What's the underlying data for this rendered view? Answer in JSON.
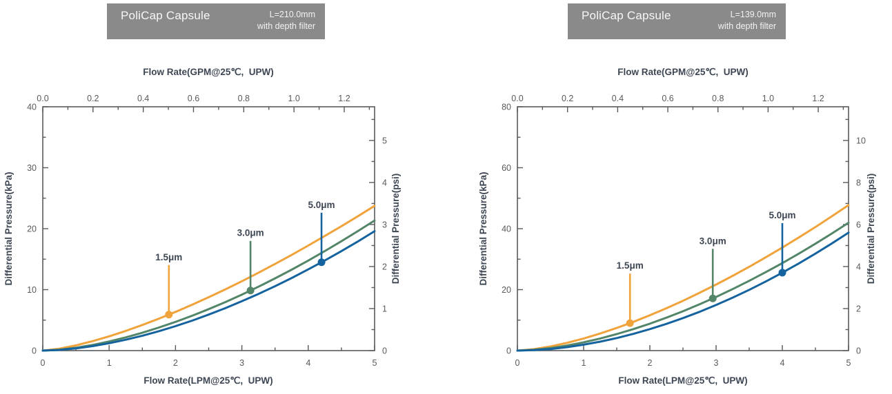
{
  "colors": {
    "header_bg": "#8A8A8A",
    "header_text": "#F2F2F2",
    "axis_line": "#58595B",
    "tick_text": "#58595B",
    "title_text": "#3D4653",
    "series_orange": "#F1A33B",
    "series_green": "#538569",
    "series_blue": "#14639E"
  },
  "chart_data": [
    {
      "type": "line",
      "header": {
        "title": "PoliCap Capsule",
        "length": "L=210.0mm",
        "subtitle": "with depth filter"
      },
      "axes": {
        "top": {
          "label": "Flow Rate(GPM@25℃,  UPW)",
          "values": [
            0,
            0.2,
            0.4,
            0.6,
            0.8,
            1.0,
            1.2
          ],
          "labels": [
            "0.0",
            "0.2",
            "0.4",
            "0.6",
            "0.8",
            "1.0",
            "1.2"
          ],
          "minors": [
            0.1,
            0.3,
            0.5,
            0.7,
            0.9,
            1.1,
            1.3
          ],
          "lpm_per_gpm": 3.78541
        },
        "bottom": {
          "label": "Flow Rate(LPM@25℃,  UPW)",
          "values": [
            0,
            1,
            2,
            3,
            4,
            5
          ],
          "labels": [
            "0",
            "1",
            "2",
            "3",
            "4",
            "5"
          ],
          "minors": [
            0.5,
            1.5,
            2.5,
            3.5,
            4.5
          ],
          "max": 5
        },
        "left": {
          "label": "Differential Pressure(kPa)",
          "values": [
            0,
            10,
            20,
            30,
            40
          ],
          "labels": [
            "0",
            "10",
            "20",
            "30",
            "40"
          ],
          "minors": [
            5,
            15,
            25,
            35
          ],
          "max": 40
        },
        "right": {
          "label": "Differential Pressure(psi)",
          "values": [
            0,
            1,
            2,
            3,
            4,
            5
          ],
          "labels": [
            "0",
            "1",
            "2",
            "3",
            "4",
            "5"
          ],
          "minors": [
            0.5,
            1.5,
            2.5,
            3.5,
            4.5,
            5.5
          ],
          "kpa_per_psi": 6.89476
        }
      },
      "x": [
        0,
        0.25,
        0.5,
        0.75,
        1,
        1.25,
        1.5,
        1.75,
        2,
        2.25,
        2.5,
        2.75,
        3,
        3.25,
        3.5,
        3.75,
        4,
        4.25,
        4.5,
        4.75,
        5
      ],
      "series": [
        {
          "name": "1.5μm",
          "color": "#F1A33B",
          "y": [
            0,
            0.32,
            0.86,
            1.55,
            2.34,
            3.23,
            4.2,
            5.24,
            6.35,
            7.52,
            8.76,
            10.04,
            11.38,
            12.78,
            14.21,
            15.7,
            17.23,
            18.8,
            20.41,
            22.06,
            23.75
          ],
          "marker": {
            "x": 1.9,
            "y": 5.9
          }
        },
        {
          "name": "3.0μm",
          "color": "#538569",
          "y": [
            0,
            0.15,
            0.48,
            0.93,
            1.5,
            2.17,
            2.93,
            3.78,
            4.71,
            5.72,
            6.8,
            7.96,
            9.19,
            10.49,
            11.85,
            13.28,
            14.77,
            16.33,
            17.94,
            19.62,
            21.35
          ],
          "marker": {
            "x": 3.13,
            "y": 9.86
          }
        },
        {
          "name": "5.0μm",
          "color": "#14639E",
          "y": [
            0,
            0.11,
            0.36,
            0.74,
            1.21,
            1.78,
            2.44,
            3.19,
            4.01,
            4.92,
            5.91,
            6.96,
            8.1,
            9.3,
            10.57,
            11.91,
            13.32,
            14.78,
            16.32,
            17.92,
            19.59
          ],
          "marker": {
            "x": 4.2,
            "y": 14.49
          }
        }
      ]
    },
    {
      "type": "line",
      "header": {
        "title": "PoliCap Capsule",
        "length": "L=139.0mm",
        "subtitle": "with depth filter"
      },
      "axes": {
        "top": {
          "label": "Flow Rate(GPM@25℃,  UPW)",
          "values": [
            0,
            0.2,
            0.4,
            0.6,
            0.8,
            1.0,
            1.2
          ],
          "labels": [
            "0.0",
            "0.2",
            "0.4",
            "0.6",
            "0.8",
            "1.0",
            "1.2"
          ],
          "minors": [
            0.1,
            0.3,
            0.5,
            0.7,
            0.9,
            1.1,
            1.3
          ],
          "lpm_per_gpm": 3.78541
        },
        "bottom": {
          "label": "Flow Rate(LPM@25℃,  UPW)",
          "values": [
            0,
            1,
            2,
            3,
            4,
            5
          ],
          "labels": [
            "0",
            "1",
            "2",
            "3",
            "4",
            "5"
          ],
          "minors": [
            0.5,
            1.5,
            2.5,
            3.5,
            4.5
          ],
          "max": 5
        },
        "left": {
          "label": "Differential Pressure(kPa)",
          "values": [
            0,
            20,
            40,
            60,
            80
          ],
          "labels": [
            "0",
            "20",
            "40",
            "60",
            "80"
          ],
          "minors": [
            10,
            30,
            50,
            70
          ],
          "max": 80
        },
        "right": {
          "label": "Differential Pressure(psi)",
          "values": [
            0,
            2,
            4,
            6,
            8,
            10
          ],
          "labels": [
            "0",
            "2",
            "4",
            "6",
            "8",
            "10"
          ],
          "minors": [
            1,
            3,
            5,
            7,
            9,
            11
          ],
          "kpa_per_psi": 6.89476
        }
      },
      "x": [
        0,
        0.25,
        0.5,
        0.75,
        1,
        1.25,
        1.5,
        1.75,
        2,
        2.25,
        2.5,
        2.75,
        3,
        3.25,
        3.5,
        3.75,
        4,
        4.25,
        4.5,
        4.75,
        5
      ],
      "series": [
        {
          "name": "1.5μm",
          "color": "#F1A33B",
          "y": [
            0,
            0.47,
            1.36,
            2.55,
            3.97,
            5.6,
            7.43,
            9.43,
            11.59,
            13.9,
            16.35,
            18.95,
            21.67,
            24.53,
            27.51,
            30.6,
            33.81,
            37.13,
            40.55,
            44.08,
            47.72
          ],
          "marker": {
            "x": 1.7,
            "y": 9.01
          }
        },
        {
          "name": "3.0μm",
          "color": "#538569",
          "y": [
            0,
            0.26,
            0.84,
            1.67,
            2.72,
            3.97,
            5.42,
            7.04,
            8.84,
            10.8,
            12.91,
            15.19,
            17.61,
            20.17,
            22.89,
            25.73,
            28.71,
            31.83,
            35.08,
            38.45,
            41.95
          ],
          "marker": {
            "x": 2.95,
            "y": 17.11
          }
        },
        {
          "name": "5.0μm",
          "color": "#14639E",
          "y": [
            0,
            0.15,
            0.53,
            1.14,
            1.94,
            2.94,
            4.12,
            5.49,
            7.04,
            8.77,
            10.67,
            12.73,
            14.97,
            17.38,
            19.94,
            22.67,
            25.56,
            28.61,
            31.82,
            35.19,
            38.71
          ],
          "marker": {
            "x": 4.0,
            "y": 25.56
          }
        }
      ]
    }
  ]
}
